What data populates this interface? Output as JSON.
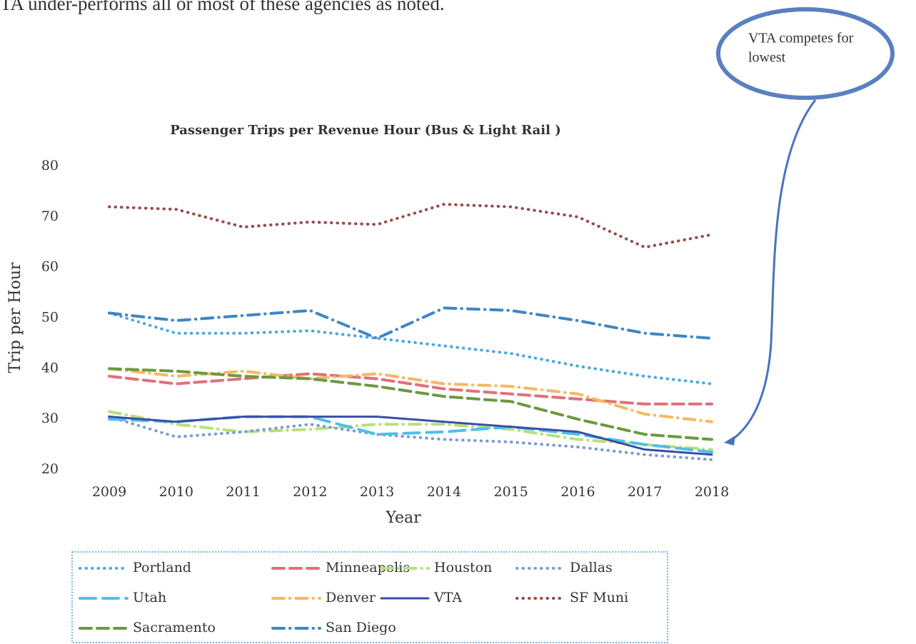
{
  "caption": "TA under-performs all or most of these agencies as noted.",
  "callout": [
    "VTA competes for",
    "lowest"
  ],
  "chart_data": {
    "type": "line",
    "title": "Passenger Trips per Revenue Hour (Bus & Light Rail )",
    "x_label": "Year",
    "y_label": "Trip per Hour",
    "x": [
      2009,
      2010,
      2011,
      2012,
      2013,
      2014,
      2015,
      2016,
      2017,
      2018
    ],
    "xlim": [
      2009,
      2018
    ],
    "xticks": [
      2009,
      2010,
      2011,
      2012,
      2013,
      2014,
      2015,
      2016,
      2017,
      2018
    ],
    "ylim": [
      20,
      80
    ],
    "yticks": [
      20,
      30,
      40,
      50,
      60,
      70,
      80
    ],
    "grid": false,
    "legend": "bottom",
    "series": [
      {
        "name": "Portland",
        "color": "#4aa8d8",
        "dash": "dotted",
        "values": [
          51,
          47,
          47,
          47.5,
          46,
          44.5,
          43,
          40.5,
          38.5,
          37
        ]
      },
      {
        "name": "Minneapolis",
        "color": "#e0707a",
        "dash": "dashed",
        "values": [
          38.5,
          37,
          38,
          39,
          38,
          36,
          35,
          34,
          33,
          33
        ]
      },
      {
        "name": "Houston",
        "color": "#b8e07a",
        "dash": "dashdot",
        "values": [
          31.5,
          29,
          27.5,
          28,
          29,
          29,
          28,
          26,
          25,
          24
        ]
      },
      {
        "name": "Dallas",
        "color": "#7b9bd0",
        "dash": "dotted",
        "values": [
          30.5,
          26.5,
          27.5,
          29,
          27,
          26,
          25.5,
          24.5,
          23,
          22
        ]
      },
      {
        "name": "Utah",
        "color": "#4fc0e8",
        "dash": "longdash",
        "values": [
          30,
          29.5,
          30.5,
          30.5,
          27,
          27.5,
          28.5,
          27,
          25,
          23.5
        ]
      },
      {
        "name": "Denver",
        "color": "#f5b860",
        "dash": "dashdot",
        "values": [
          40,
          38.5,
          39.5,
          38,
          39,
          37,
          36.5,
          35,
          31,
          29.5
        ]
      },
      {
        "name": "VTA",
        "color": "#3a4ea8",
        "dash": "solid",
        "values": [
          30.5,
          29.5,
          30.5,
          30.5,
          30.5,
          29.5,
          28.5,
          27.5,
          24,
          23
        ]
      },
      {
        "name": "SF Muni",
        "color": "#9b4a4a",
        "dash": "dotted",
        "values": [
          72,
          71.5,
          68,
          69,
          68.5,
          72.5,
          72,
          70,
          64,
          66.5
        ]
      },
      {
        "name": "Sacramento",
        "color": "#6a9a40",
        "dash": "dashed",
        "values": [
          40,
          39.5,
          38.5,
          38,
          36.5,
          34.5,
          33.5,
          30,
          27,
          26
        ]
      },
      {
        "name": "San Diego",
        "color": "#3e86c4",
        "dash": "dashdot",
        "values": [
          51,
          49.5,
          50.5,
          51.5,
          46,
          52,
          51.5,
          49.5,
          47,
          46
        ]
      }
    ]
  }
}
